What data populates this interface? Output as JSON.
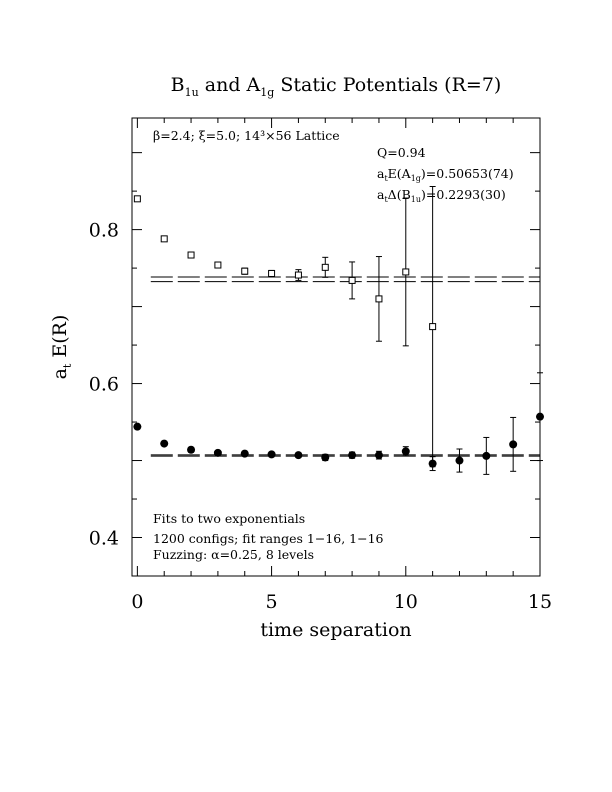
{
  "chart_data": {
    "type": "scatter",
    "title": {
      "a": "B",
      "a_sub": "1u",
      "b": " and A",
      "b_sub": "1g",
      "c": " Static Potentials (R=7)"
    },
    "xlabel": "time separation",
    "ylabel": {
      "main": "a",
      "sub": "t",
      "rest": " E(R)"
    },
    "xlim": [
      -0.2,
      15
    ],
    "ylim": [
      0.35,
      0.945
    ],
    "x_ticks": [
      0,
      5,
      10,
      15
    ],
    "x_tick_labels": [
      "0",
      "5",
      "10",
      "15"
    ],
    "y_ticks": [
      0.4,
      0.6,
      0.8
    ],
    "y_tick_labels": [
      "0.4",
      "0.6",
      "0.8"
    ],
    "grid": false,
    "series": [
      {
        "marker": "open-square",
        "points": [
          {
            "x": 0,
            "y": 0.84,
            "err": 0
          },
          {
            "x": 1,
            "y": 0.788,
            "err": 0.002
          },
          {
            "x": 2,
            "y": 0.767,
            "err": 0.002
          },
          {
            "x": 3,
            "y": 0.754,
            "err": 0.003
          },
          {
            "x": 4,
            "y": 0.746,
            "err": 0.004
          },
          {
            "x": 5,
            "y": 0.743,
            "err": 0.004
          },
          {
            "x": 6,
            "y": 0.741,
            "err": 0.007
          },
          {
            "x": 7,
            "y": 0.751,
            "err": 0.013
          },
          {
            "x": 8,
            "y": 0.734,
            "err": 0.024
          },
          {
            "x": 9,
            "y": 0.71,
            "err": 0.055
          },
          {
            "x": 10,
            "y": 0.745,
            "err": 0.096
          },
          {
            "x": 11,
            "y": 0.674,
            "err": 0.182
          }
        ]
      },
      {
        "marker": "filled-circle",
        "points": [
          {
            "x": 0,
            "y": 0.544,
            "err": 0.002
          },
          {
            "x": 1,
            "y": 0.522,
            "err": 0.002
          },
          {
            "x": 2,
            "y": 0.514,
            "err": 0.003
          },
          {
            "x": 3,
            "y": 0.51,
            "err": 0.002
          },
          {
            "x": 4,
            "y": 0.509,
            "err": 0.002
          },
          {
            "x": 5,
            "y": 0.508,
            "err": 0.002
          },
          {
            "x": 6,
            "y": 0.507,
            "err": 0.003
          },
          {
            "x": 7,
            "y": 0.504,
            "err": 0.004
          },
          {
            "x": 8,
            "y": 0.507,
            "err": 0.004
          },
          {
            "x": 9,
            "y": 0.507,
            "err": 0.005
          },
          {
            "x": 10,
            "y": 0.512,
            "err": 0.006
          },
          {
            "x": 11,
            "y": 0.496,
            "err": 0.009
          },
          {
            "x": 12,
            "y": 0.5,
            "err": 0.015
          },
          {
            "x": 13,
            "y": 0.506,
            "err": 0.024
          },
          {
            "x": 14,
            "y": 0.521,
            "err": 0.035
          },
          {
            "x": 15,
            "y": 0.557,
            "err": 0.057
          }
        ]
      }
    ],
    "fit_lines": [
      {
        "x": [
          0.5,
          15
        ],
        "y": 0.7355,
        "band": 0.003
      },
      {
        "x": [
          0.5,
          15
        ],
        "y": 0.5065,
        "band": 0.0008
      }
    ],
    "annotations": {
      "lattice": "β=2.4; ξ=5.0; 14³×56 Lattice",
      "q": "Q=0.94",
      "energy": {
        "a": "a",
        "a_sub": "t",
        "b": "E(A",
        "b_sub": "1g",
        "c": ")=0.50653(74)"
      },
      "gap": {
        "a": "a",
        "a_sub": "t",
        "b": "Δ(B",
        "b_sub": "1u",
        "c": ")=0.2293(30)"
      },
      "fits": "Fits to two exponentials",
      "configs": "1200 configs; fit ranges 1−16, 1−16",
      "fuzzing": "Fuzzing: α=0.25, 8 levels"
    }
  }
}
